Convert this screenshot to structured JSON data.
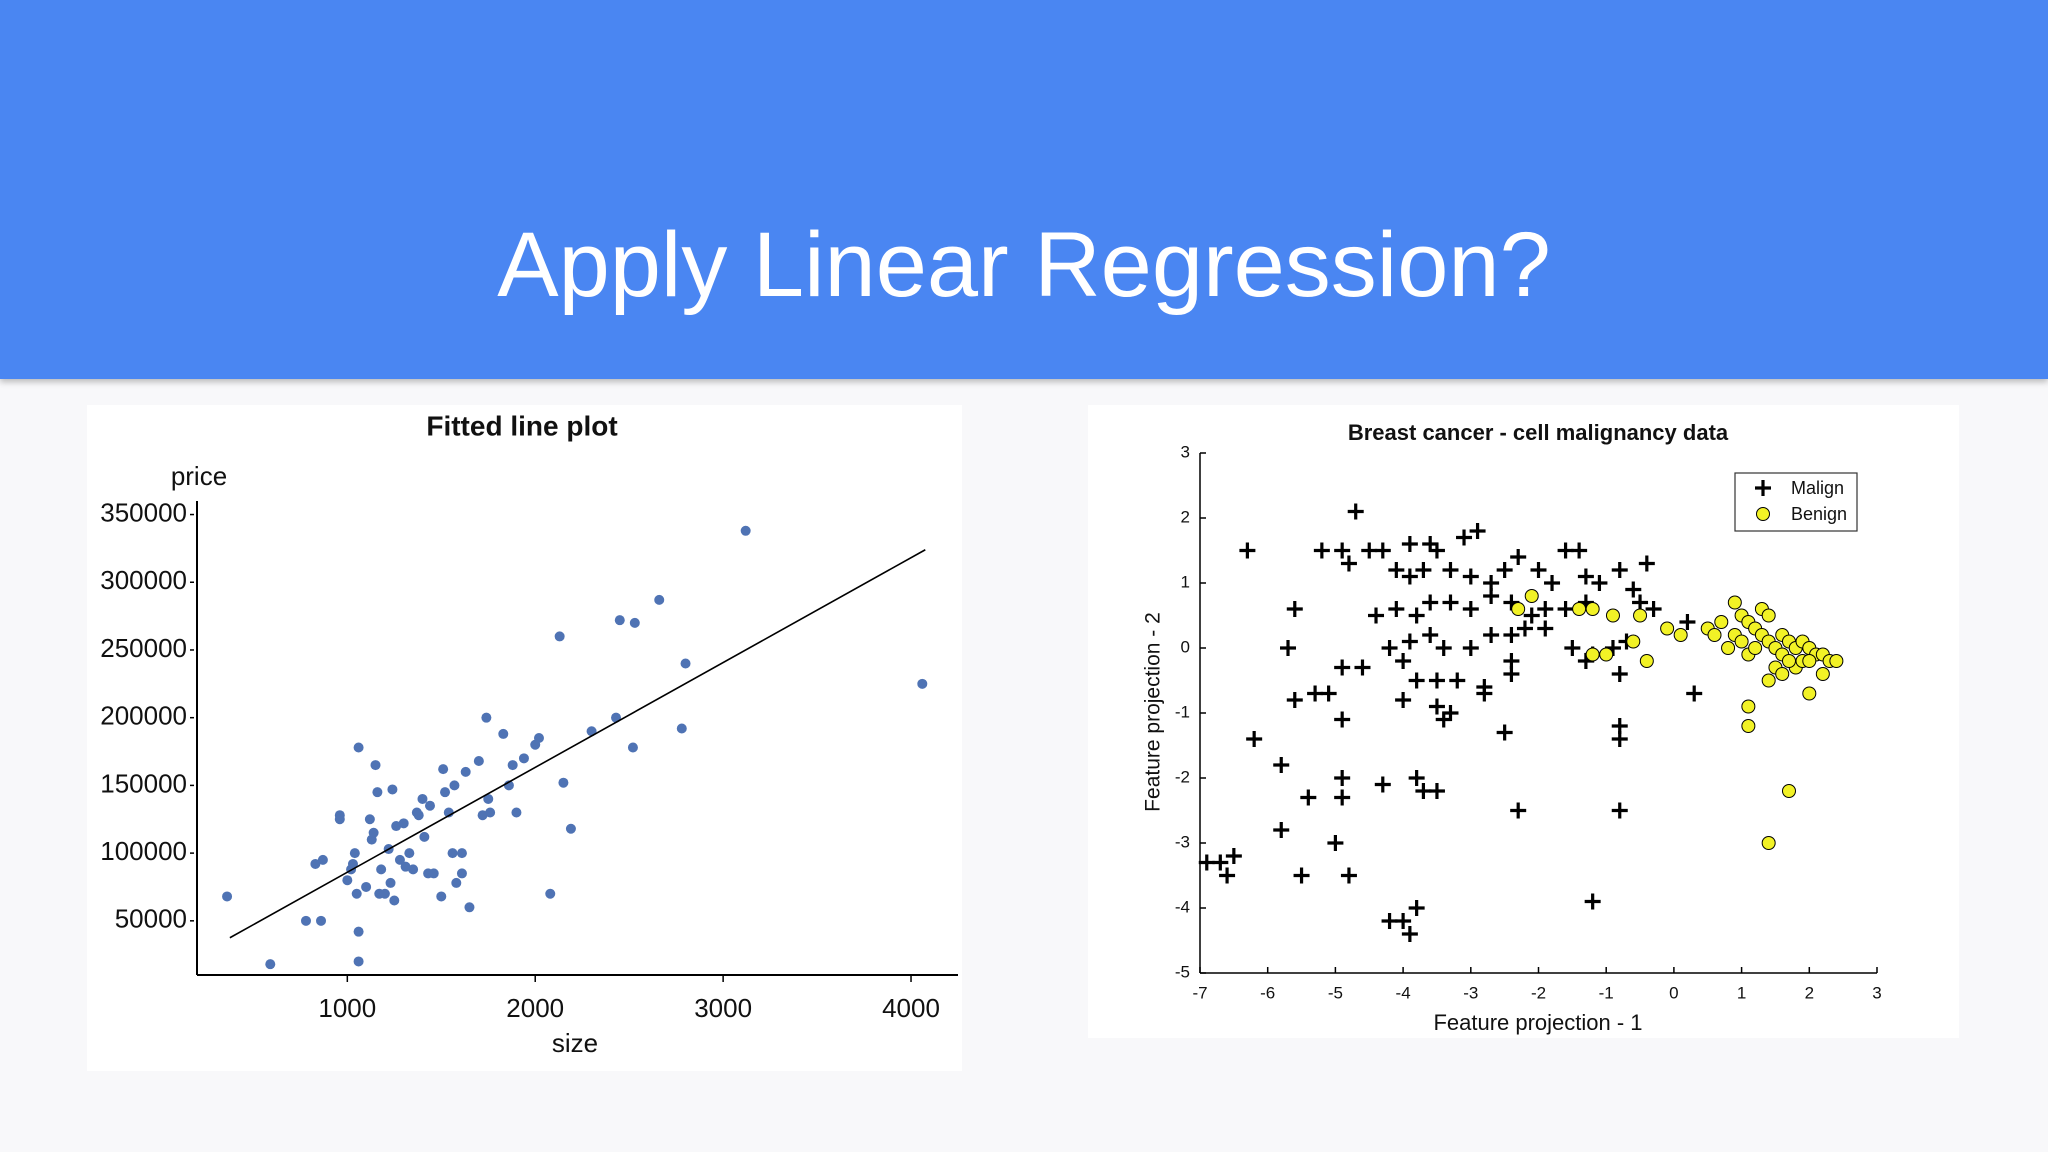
{
  "slide_title": "Apply Linear Regression?",
  "chart_data": [
    {
      "type": "scatter",
      "title": "Fitted line plot",
      "xlabel": "size",
      "ylabel": "price",
      "xlim": [
        200,
        4250
      ],
      "ylim": [
        10000,
        360000
      ],
      "xticks": [
        1000,
        2000,
        3000,
        4000
      ],
      "yticks": [
        50000,
        100000,
        150000,
        200000,
        250000,
        300000,
        350000
      ],
      "series": [
        {
          "marker": "dot",
          "color": "#4f73b4",
          "x": [
            360,
            590,
            780,
            860,
            830,
            870,
            960,
            960,
            1000,
            1020,
            1030,
            1040,
            1050,
            1060,
            1060,
            1060,
            1100,
            1120,
            1130,
            1140,
            1150,
            1160,
            1170,
            1180,
            1200,
            1220,
            1230,
            1240,
            1250,
            1260,
            1280,
            1300,
            1310,
            1330,
            1350,
            1370,
            1380,
            1400,
            1410,
            1430,
            1440,
            1460,
            1500,
            1510,
            1520,
            1540,
            1560,
            1570,
            1580,
            1610,
            1610,
            1630,
            1650,
            1700,
            1720,
            1740,
            1750,
            1760,
            1830,
            1860,
            1880,
            1900,
            1940,
            2000,
            2020,
            2080,
            2130,
            2150,
            2190,
            2300,
            2430,
            2450,
            2520,
            2530,
            2660,
            2780,
            2800,
            3120,
            4060
          ],
          "y": [
            68000,
            18000,
            50000,
            50000,
            92000,
            95000,
            128000,
            125000,
            80000,
            88000,
            92000,
            100000,
            70000,
            178000,
            42000,
            20000,
            75000,
            125000,
            110000,
            115000,
            165000,
            145000,
            70000,
            88000,
            70000,
            103000,
            78000,
            147000,
            65000,
            120000,
            95000,
            122000,
            90000,
            100000,
            88000,
            130000,
            128000,
            140000,
            112000,
            85000,
            135000,
            85000,
            68000,
            162000,
            145000,
            130000,
            100000,
            150000,
            78000,
            85000,
            100000,
            160000,
            60000,
            168000,
            128000,
            200000,
            140000,
            130000,
            188000,
            150000,
            165000,
            130000,
            170000,
            180000,
            185000,
            70000,
            260000,
            152000,
            118000,
            190000,
            200000,
            272000,
            178000,
            270000,
            287000,
            192000,
            240000,
            338000,
            225000
          ]
        },
        {
          "marker": "line",
          "color": "#000000",
          "x": [
            375,
            4076
          ],
          "y": [
            37500,
            324000
          ]
        }
      ]
    },
    {
      "type": "scatter",
      "title": "Breast cancer - cell malignancy data",
      "xlabel": "Feature projection - 1",
      "ylabel": "Feature projection - 2",
      "xlim": [
        -7,
        3
      ],
      "ylim": [
        -5,
        3
      ],
      "xticks": [
        -7,
        -6,
        -5,
        -4,
        -3,
        -2,
        -1,
        0,
        1,
        2,
        3
      ],
      "yticks": [
        -5,
        -4,
        -3,
        -2,
        -1,
        0,
        1,
        2,
        3
      ],
      "legend": "upper right",
      "series": [
        {
          "name": "Malign",
          "marker": "plus",
          "color": "#000000",
          "x": [
            -4.7,
            -6.3,
            -5.2,
            -4.9,
            -4.8,
            -4.5,
            -4.3,
            -3.9,
            -3.6,
            -3.5,
            -3.1,
            -2.9,
            -2.3,
            -1.6,
            -1.4,
            -0.8,
            -0.4,
            -4.1,
            -3.9,
            -3.7,
            -3.3,
            -3.0,
            -2.7,
            -2.5,
            -2.0,
            -1.8,
            -1.3,
            -1.1,
            -0.6,
            -0.5,
            -5.6,
            -4.4,
            -4.1,
            -3.8,
            -3.6,
            -3.3,
            -3.0,
            -2.7,
            -2.4,
            -2.1,
            -1.9,
            -1.6,
            -1.3,
            -0.3,
            -5.7,
            -4.2,
            -3.9,
            -3.6,
            -3.4,
            -3.0,
            -2.7,
            -2.4,
            -2.2,
            -1.9,
            -1.5,
            -1.3,
            -1.2,
            -0.9,
            -0.7,
            0.2,
            0.3,
            -4.9,
            -4.6,
            -4.0,
            -3.8,
            -3.5,
            -3.2,
            -2.8,
            -2.4,
            -2.4,
            -5.6,
            -5.3,
            -5.1,
            -4.0,
            -3.5,
            -3.3,
            -2.8,
            -0.8,
            -4.9,
            -3.4,
            -2.5,
            -0.8,
            -0.8,
            -6.2,
            -5.8,
            -4.9,
            -4.9,
            -5.4,
            -4.3,
            -3.8,
            -3.7,
            -3.5,
            -2.3,
            -0.8,
            -5.8,
            -5.0,
            -6.9,
            -6.7,
            -6.5,
            -6.6,
            -5.5,
            -4.8,
            -4.2,
            -4.0,
            -3.8,
            -3.9,
            -1.2
          ],
          "y": [
            2.1,
            1.5,
            1.5,
            1.5,
            1.3,
            1.5,
            1.5,
            1.6,
            1.6,
            1.5,
            1.7,
            1.8,
            1.4,
            1.5,
            1.5,
            1.2,
            1.3,
            1.2,
            1.1,
            1.2,
            1.2,
            1.1,
            1.0,
            1.2,
            1.2,
            1.0,
            1.1,
            1.0,
            0.9,
            0.7,
            0.6,
            0.5,
            0.6,
            0.5,
            0.7,
            0.7,
            0.6,
            0.8,
            0.7,
            0.5,
            0.6,
            0.6,
            0.7,
            0.6,
            0.0,
            0.0,
            0.1,
            0.2,
            0.0,
            0.0,
            0.2,
            0.2,
            0.3,
            0.3,
            0.0,
            -0.2,
            -0.1,
            0.0,
            0.1,
            0.4,
            -0.7,
            -0.3,
            -0.3,
            -0.2,
            -0.5,
            -0.5,
            -0.5,
            -0.6,
            -0.2,
            -0.4,
            -0.8,
            -0.7,
            -0.7,
            -0.8,
            -0.9,
            -1.0,
            -0.7,
            -0.4,
            -1.1,
            -1.1,
            -1.3,
            -1.2,
            -1.4,
            -1.4,
            -1.8,
            -2.0,
            -2.3,
            -2.3,
            -2.1,
            -2.0,
            -2.2,
            -2.2,
            -2.5,
            -2.5,
            -2.8,
            -3.0,
            -3.3,
            -3.3,
            -3.2,
            -3.5,
            -3.5,
            -3.5,
            -4.2,
            -4.2,
            -4.0,
            -4.4,
            -3.9
          ]
        },
        {
          "name": "Benign",
          "marker": "circle",
          "color": "#f2f226",
          "edgecolor": "#000000",
          "x": [
            -2.3,
            -2.1,
            -1.4,
            -1.2,
            -0.9,
            -0.5,
            -1.0,
            -1.2,
            -0.6,
            -0.4,
            -0.1,
            0.1,
            0.5,
            0.6,
            0.7,
            0.8,
            0.9,
            1.0,
            1.1,
            1.2,
            1.3,
            1.4,
            0.9,
            1.0,
            1.1,
            1.2,
            1.3,
            1.4,
            1.5,
            1.6,
            1.7,
            1.8,
            1.9,
            2.0,
            2.1,
            2.2,
            2.3,
            2.4,
            1.5,
            1.6,
            1.8,
            1.9,
            2.0,
            2.2,
            1.4,
            1.6,
            1.7,
            2.0,
            1.1,
            1.1,
            1.7,
            1.4
          ],
          "y": [
            0.6,
            0.8,
            0.6,
            0.6,
            0.5,
            0.5,
            -0.1,
            -0.1,
            0.1,
            -0.2,
            0.3,
            0.2,
            0.3,
            0.2,
            0.4,
            0.0,
            0.7,
            0.5,
            0.4,
            0.3,
            0.6,
            0.5,
            0.2,
            0.1,
            -0.1,
            0.0,
            0.2,
            0.1,
            0.0,
            0.2,
            0.1,
            0.0,
            0.1,
            0.0,
            -0.1,
            -0.1,
            -0.2,
            -0.2,
            -0.3,
            -0.4,
            -0.3,
            -0.2,
            -0.2,
            -0.4,
            -0.5,
            -0.1,
            -0.2,
            -0.7,
            -0.9,
            -1.2,
            -2.2,
            -3.0
          ]
        }
      ]
    }
  ]
}
